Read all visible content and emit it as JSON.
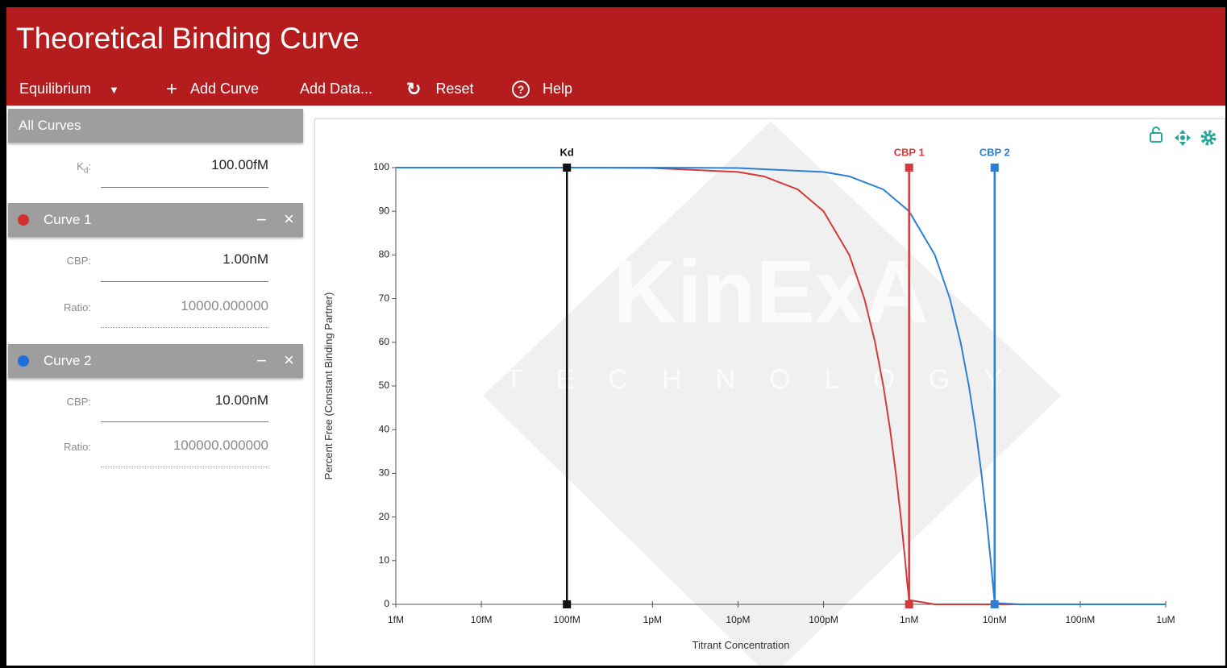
{
  "header": {
    "title": "Theoretical Binding Curve"
  },
  "toolbar": {
    "mode": "Equilibrium",
    "add_curve": "Add Curve",
    "add_data": "Add Data...",
    "reset": "Reset",
    "help": "Help"
  },
  "sidebar": {
    "all_curves": {
      "title": "All Curves",
      "kd_label": {
        "symbol": "K",
        "subscript": "d",
        "suffix": ":"
      },
      "kd_value": "100.00fM"
    },
    "curves": [
      {
        "name": "Curve 1",
        "color": "#d32f2f",
        "cbp_label": "CBP:",
        "cbp_value": "1.00nM",
        "ratio_label": "Ratio:",
        "ratio_value": "10000.000000"
      },
      {
        "name": "Curve 2",
        "color": "#1e6fd9",
        "cbp_label": "CBP:",
        "cbp_value": "10.00nM",
        "ratio_label": "Ratio:",
        "ratio_value": "100000.000000"
      }
    ]
  },
  "watermark": {
    "brand": "KinExA",
    "tagline": "TECHNOLOGY"
  },
  "chart_data": {
    "type": "line",
    "x_label": "Titrant Concentration",
    "y_label": "Percent Free (Constant Binding Partner)",
    "xscale": "log",
    "xlim": [
      1e-15,
      1e-06
    ],
    "xticks": [
      {
        "value": 1e-15,
        "label": "1fM"
      },
      {
        "value": 1e-14,
        "label": "10fM"
      },
      {
        "value": 1e-13,
        "label": "100fM"
      },
      {
        "value": 1e-12,
        "label": "1pM"
      },
      {
        "value": 1e-11,
        "label": "10pM"
      },
      {
        "value": 1e-10,
        "label": "100pM"
      },
      {
        "value": 1e-09,
        "label": "1nM"
      },
      {
        "value": 1e-08,
        "label": "10nM"
      },
      {
        "value": 1e-07,
        "label": "100nM"
      },
      {
        "value": 1e-06,
        "label": "1uM"
      }
    ],
    "ylim": [
      0,
      100
    ],
    "yticks": [
      0,
      10,
      20,
      30,
      40,
      50,
      60,
      70,
      80,
      90,
      100
    ],
    "series": [
      {
        "color": "#d43a3a",
        "x": [
          1e-15,
          1e-14,
          1e-13,
          1e-12,
          1e-11,
          2e-11,
          5e-11,
          1e-10,
          2e-10,
          3e-10,
          4e-10,
          5e-10,
          6e-10,
          7e-10,
          8e-10,
          9e-10,
          9.5e-10,
          1e-09,
          2e-09,
          1e-08,
          1e-07,
          1e-06
        ],
        "values": [
          100,
          100,
          100,
          99.9,
          99,
          98,
          95,
          90,
          80,
          70,
          60,
          50,
          40,
          30,
          20,
          10,
          5,
          1,
          0,
          0,
          0,
          0
        ]
      },
      {
        "color": "#2b7fd6",
        "x": [
          1e-15,
          1e-12,
          1e-11,
          1e-10,
          2e-10,
          5e-10,
          1e-09,
          2e-09,
          3e-09,
          4e-09,
          5e-09,
          6e-09,
          7e-09,
          8e-09,
          9e-09,
          9.5e-09,
          1e-08,
          2e-08,
          1e-07,
          1e-06
        ],
        "values": [
          100,
          100,
          99.9,
          99,
          98,
          95,
          90,
          80,
          70,
          60,
          50,
          40,
          30,
          20,
          10,
          5,
          0.3,
          0,
          0,
          0
        ]
      }
    ],
    "markers": [
      {
        "label": "Kd",
        "x": 1e-13,
        "color": "#111111"
      },
      {
        "label": "CBP 1",
        "x": 1e-09,
        "color": "#d43a3a"
      },
      {
        "label": "CBP 2",
        "x": 1e-08,
        "color": "#2b7fd6"
      }
    ]
  }
}
